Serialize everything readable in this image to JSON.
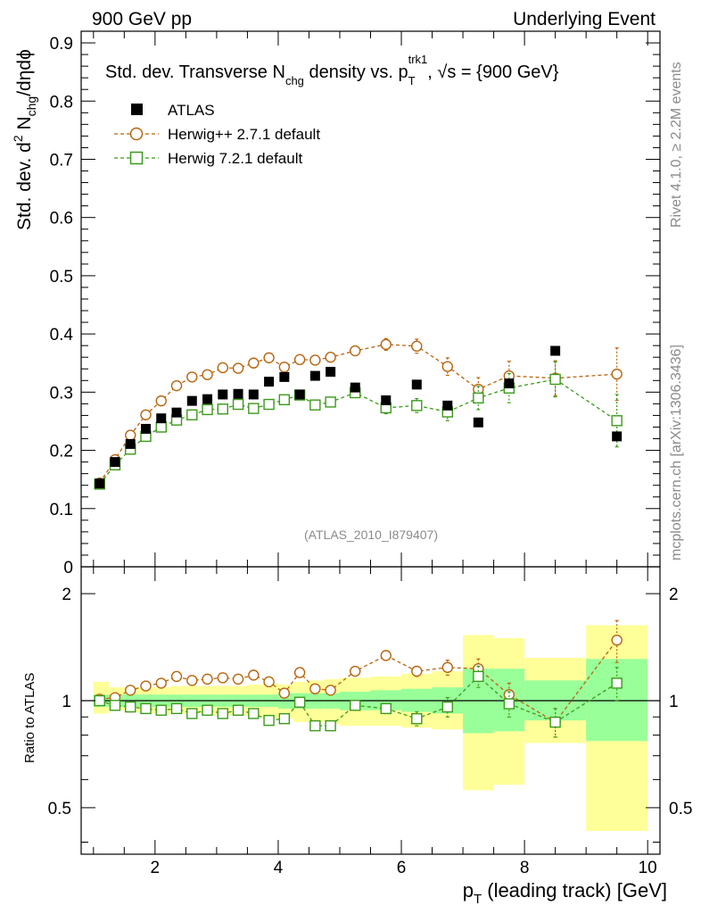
{
  "header": {
    "left": "900 GeV pp",
    "right": "Underlying Event"
  },
  "side": {
    "rivet": "Rivet 4.1.0, ≥ 2.2M events",
    "mcplots": "mcplots.cern.ch [arXiv:1306.3436]"
  },
  "chart_data": {
    "type": "scatter",
    "title": {
      "prefix": "Std. dev. Transverse N",
      "sub1": "chg",
      "mid": " density vs. p",
      "sub2": "T",
      "sup2": "trk1",
      "suffix": ", √s = {900 GeV}"
    },
    "ylabel": {
      "main": "Std. dev. d",
      "sup": "2",
      "mid": " N",
      "sub": "chg",
      "tail": "/dηdϕ"
    },
    "xlabel": {
      "main": "p",
      "sub": "T",
      "tail": " (leading track) [GeV]"
    },
    "ratio_ylabel": "Ratio to ATLAS",
    "analysis_label": "(ATLAS_2010_I879407)",
    "xlim": [
      0.8,
      10.2
    ],
    "ylim": [
      0,
      0.92
    ],
    "ratio_ylim": [
      0.37,
      2.38
    ],
    "xticks": [
      2,
      4,
      6,
      8,
      10
    ],
    "xtick_labels": [
      "2",
      "4",
      "6",
      "8",
      "10"
    ],
    "yticks": [
      0,
      0.1,
      0.2,
      0.3,
      0.4,
      0.5,
      0.6,
      0.7,
      0.8,
      0.9
    ],
    "ytick_labels": [
      "0",
      "0.1",
      "0.2",
      "0.3",
      "0.4",
      "0.5",
      "0.6",
      "0.7",
      "0.8",
      "0.9"
    ],
    "ratio_yticks": [
      0.5,
      1,
      2
    ],
    "ratio_ytick_labels": [
      "0.5",
      "1",
      "2"
    ],
    "x": [
      1.1,
      1.35,
      1.6,
      1.85,
      2.1,
      2.35,
      2.6,
      2.85,
      3.1,
      3.35,
      3.6,
      3.85,
      4.1,
      4.35,
      4.6,
      4.85,
      5.25,
      5.75,
      6.25,
      6.75,
      7.25,
      7.75,
      8.5,
      9.5
    ],
    "series": [
      {
        "name": "ATLAS",
        "marker": "filled-square",
        "color": "#000000",
        "values": [
          0.143,
          0.18,
          0.211,
          0.237,
          0.255,
          0.265,
          0.285,
          0.288,
          0.296,
          0.297,
          0.296,
          0.318,
          0.326,
          0.296,
          0.328,
          0.335,
          0.308,
          0.286,
          0.313,
          0.277,
          0.248,
          0.315,
          0.371,
          0.224
        ]
      },
      {
        "name": "Herwig++ 2.7.1 default",
        "marker": "open-circle",
        "color": "#b8640f",
        "values": [
          0.144,
          0.184,
          0.226,
          0.261,
          0.285,
          0.311,
          0.326,
          0.33,
          0.342,
          0.341,
          0.35,
          0.359,
          0.343,
          0.356,
          0.355,
          0.36,
          0.371,
          0.382,
          0.379,
          0.344,
          0.305,
          0.328,
          0.324,
          0.331
        ],
        "errors": [
          0.004,
          0.004,
          0.004,
          0.004,
          0.004,
          0.004,
          0.004,
          0.004,
          0.004,
          0.004,
          0.005,
          0.005,
          0.005,
          0.005,
          0.006,
          0.007,
          0.008,
          0.01,
          0.012,
          0.015,
          0.02,
          0.025,
          0.03,
          0.045
        ],
        "ratio": [
          1.01,
          1.02,
          1.07,
          1.1,
          1.12,
          1.17,
          1.14,
          1.15,
          1.16,
          1.15,
          1.18,
          1.13,
          1.05,
          1.2,
          1.08,
          1.07,
          1.21,
          1.34,
          1.21,
          1.24,
          1.23,
          1.04,
          0.87,
          1.48
        ],
        "ratio_errors": [
          0.01,
          0.01,
          0.01,
          0.01,
          0.01,
          0.01,
          0.01,
          0.01,
          0.01,
          0.01,
          0.02,
          0.02,
          0.02,
          0.02,
          0.02,
          0.02,
          0.03,
          0.03,
          0.04,
          0.06,
          0.08,
          0.08,
          0.08,
          0.2
        ]
      },
      {
        "name": "Herwig 7.2.1 default",
        "marker": "open-square",
        "color": "#3b9a1a",
        "values": [
          0.142,
          0.175,
          0.202,
          0.224,
          0.24,
          0.252,
          0.261,
          0.27,
          0.271,
          0.279,
          0.272,
          0.279,
          0.287,
          0.295,
          0.278,
          0.283,
          0.299,
          0.273,
          0.277,
          0.266,
          0.29,
          0.307,
          0.322,
          0.251
        ],
        "errors": [
          0.004,
          0.004,
          0.004,
          0.004,
          0.004,
          0.004,
          0.004,
          0.004,
          0.004,
          0.004,
          0.005,
          0.005,
          0.005,
          0.005,
          0.006,
          0.007,
          0.008,
          0.01,
          0.012,
          0.015,
          0.02,
          0.025,
          0.03,
          0.045
        ],
        "ratio": [
          1.0,
          0.97,
          0.96,
          0.95,
          0.94,
          0.95,
          0.92,
          0.94,
          0.92,
          0.94,
          0.92,
          0.88,
          0.89,
          0.99,
          0.85,
          0.85,
          0.97,
          0.95,
          0.89,
          0.96,
          1.17,
          0.98,
          0.87,
          1.12
        ],
        "ratio_errors": [
          0.01,
          0.01,
          0.01,
          0.01,
          0.01,
          0.01,
          0.01,
          0.01,
          0.01,
          0.01,
          0.02,
          0.02,
          0.02,
          0.02,
          0.02,
          0.02,
          0.03,
          0.03,
          0.04,
          0.06,
          0.08,
          0.08,
          0.08,
          0.12
        ]
      }
    ],
    "ratio_bands": {
      "x_edges": [
        1.0,
        1.25,
        1.5,
        1.75,
        2.0,
        2.25,
        2.5,
        2.75,
        3.0,
        3.25,
        3.5,
        3.75,
        4.0,
        4.25,
        4.5,
        4.75,
        5.0,
        5.5,
        6.0,
        6.5,
        7.0,
        7.5,
        8.0,
        9.0,
        10.0
      ],
      "inner_lo": [
        0.96,
        0.96,
        0.96,
        0.96,
        0.96,
        0.96,
        0.96,
        0.96,
        0.96,
        0.96,
        0.96,
        0.96,
        0.95,
        0.95,
        0.95,
        0.95,
        0.94,
        0.94,
        0.93,
        0.92,
        0.81,
        0.82,
        0.88,
        0.77
      ],
      "inner_hi": [
        1.04,
        1.04,
        1.04,
        1.04,
        1.04,
        1.04,
        1.04,
        1.04,
        1.04,
        1.04,
        1.04,
        1.04,
        1.05,
        1.05,
        1.05,
        1.05,
        1.06,
        1.07,
        1.08,
        1.09,
        1.23,
        1.23,
        1.14,
        1.31
      ],
      "outer_lo": [
        0.92,
        0.94,
        0.93,
        0.92,
        0.92,
        0.92,
        0.92,
        0.91,
        0.91,
        0.91,
        0.9,
        0.89,
        0.89,
        0.87,
        0.87,
        0.86,
        0.85,
        0.85,
        0.84,
        0.83,
        0.56,
        0.58,
        0.76,
        0.43
      ],
      "outer_hi": [
        1.13,
        1.09,
        1.09,
        1.09,
        1.09,
        1.1,
        1.1,
        1.1,
        1.1,
        1.1,
        1.11,
        1.12,
        1.11,
        1.13,
        1.14,
        1.15,
        1.16,
        1.17,
        1.19,
        1.21,
        1.53,
        1.5,
        1.32,
        1.63
      ]
    },
    "band_colors": {
      "inner": "#99ff99",
      "outer": "#ffff99"
    }
  }
}
